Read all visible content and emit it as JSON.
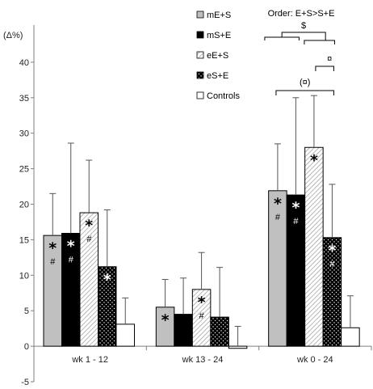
{
  "chart_data": {
    "type": "bar",
    "ylabel": "(Δ%)",
    "ylim": [
      -5,
      45
    ],
    "yticks": [
      "-5",
      "0",
      "5",
      "10",
      "15",
      "20",
      "25",
      "30",
      "35",
      "40"
    ],
    "grid": false,
    "legend_position": "top",
    "categories": [
      "wk 1 - 12",
      "wk 13 - 24",
      "wk 0 - 24"
    ],
    "series": [
      {
        "name": "mE+S",
        "color": "#c0c0c0",
        "pattern": "solid-gray",
        "values": [
          15.6,
          5.5,
          21.9
        ],
        "errors": [
          5.9,
          3.9,
          6.6
        ],
        "marks": [
          [
            "*",
            "#"
          ],
          [
            "*"
          ],
          [
            "*",
            "#"
          ]
        ]
      },
      {
        "name": "mS+E",
        "color": "#000000",
        "pattern": "solid-black",
        "values": [
          15.9,
          4.5,
          21.3
        ],
        "errors": [
          12.7,
          5.1,
          13.7
        ],
        "marks": [
          [
            "*",
            "#"
          ],
          [],
          [
            "*",
            "#"
          ]
        ]
      },
      {
        "name": "eE+S",
        "color": "#ffffff",
        "pattern": "diagonal-hatch",
        "values": [
          18.8,
          8.0,
          28.0
        ],
        "errors": [
          7.4,
          5.2,
          7.3
        ],
        "marks": [
          [
            "*",
            "#"
          ],
          [
            "*",
            "#"
          ],
          [
            "*"
          ]
        ]
      },
      {
        "name": "eS+E",
        "color": "#000000",
        "pattern": "black-dots",
        "values": [
          11.2,
          4.1,
          15.3
        ],
        "errors": [
          8.0,
          7.0,
          7.5
        ],
        "marks": [
          [
            "*"
          ],
          [],
          [
            "*",
            "#"
          ]
        ]
      },
      {
        "name": "Controls",
        "color": "#ffffff",
        "pattern": "white",
        "values": [
          3.1,
          -0.3,
          2.6
        ],
        "errors": [
          3.7,
          3.1,
          4.5
        ],
        "marks": [
          [],
          [],
          []
        ]
      }
    ],
    "annotations": {
      "order_text": "Order: E+S>S+E",
      "dollar": "$",
      "currency": "¤",
      "currency_paren": "(¤)"
    }
  }
}
